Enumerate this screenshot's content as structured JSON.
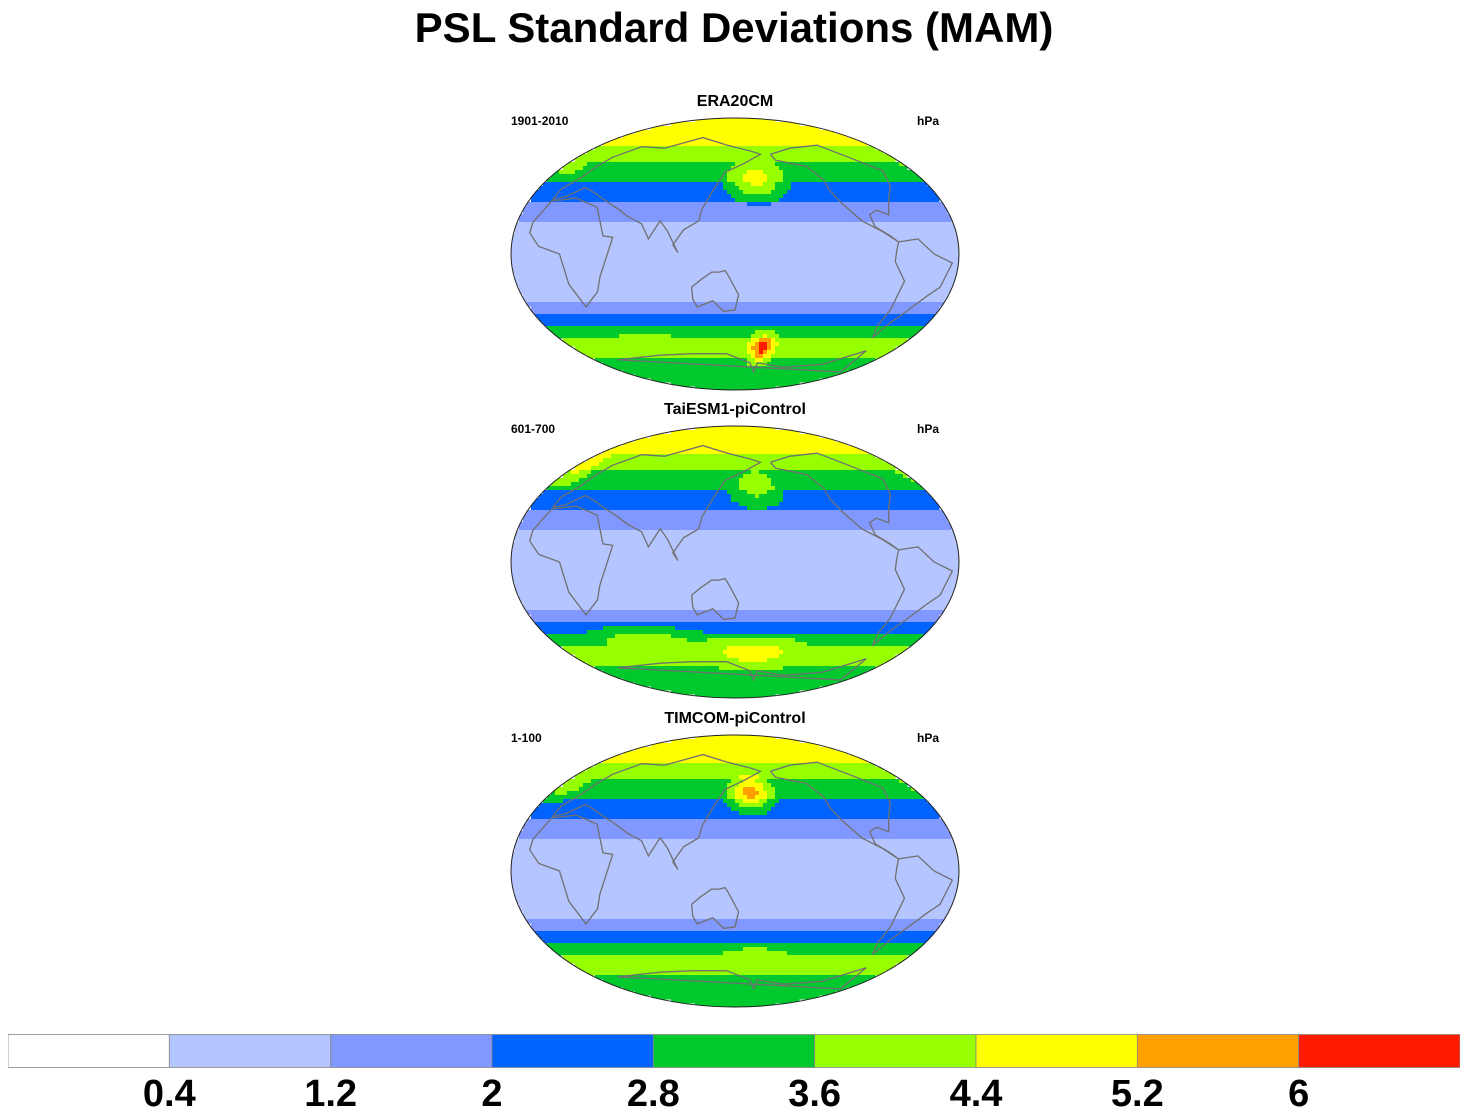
{
  "chart_data": {
    "type": "heatmap",
    "title": "PSL Standard Deviations (MAM)",
    "panels": [
      {
        "name": "ERA20CM",
        "period": "1901-2010",
        "units": "hPa",
        "features": [
          {
            "level": 5,
            "lon": -120,
            "lat": 82,
            "sx": 70,
            "sy": 8
          },
          {
            "level": 5,
            "lon": 170,
            "lat": 50,
            "sx": 18,
            "sy": 10
          },
          {
            "level": 4,
            "lon": -20,
            "lat": 62,
            "sx": 14,
            "sy": 10
          },
          {
            "level": 8,
            "lon": 180,
            "lat": -62,
            "sx": 10,
            "sy": 6
          },
          {
            "level": 4,
            "lon": 60,
            "lat": -60,
            "sx": 40,
            "sy": 8
          }
        ]
      },
      {
        "name": "TaiESM1-piControl",
        "period": "601-700",
        "units": "hPa",
        "features": [
          {
            "level": 5,
            "lon": -120,
            "lat": 82,
            "sx": 60,
            "sy": 8
          },
          {
            "level": 4,
            "lon": 170,
            "lat": 50,
            "sx": 18,
            "sy": 10
          },
          {
            "level": 5,
            "lon": -20,
            "lat": 65,
            "sx": 12,
            "sy": 10
          },
          {
            "level": 5,
            "lon": 170,
            "lat": -60,
            "sx": 40,
            "sy": 7
          },
          {
            "level": 4,
            "lon": 60,
            "lat": -55,
            "sx": 40,
            "sy": 8
          }
        ]
      },
      {
        "name": "TIMCOM-piControl",
        "period": "1-100",
        "units": "hPa",
        "features": [
          {
            "level": 5,
            "lon": -120,
            "lat": 82,
            "sx": 60,
            "sy": 8
          },
          {
            "level": 6,
            "lon": 165,
            "lat": 52,
            "sx": 14,
            "sy": 8
          },
          {
            "level": 4,
            "lon": -20,
            "lat": 60,
            "sx": 14,
            "sy": 10
          },
          {
            "level": 4,
            "lon": 170,
            "lat": -58,
            "sx": 40,
            "sy": 7
          },
          {
            "level": 3,
            "lon": 60,
            "lat": -55,
            "sx": 40,
            "sy": 8
          }
        ]
      }
    ],
    "levels": [
      0.4,
      1.2,
      2,
      2.8,
      3.6,
      4.4,
      5.2,
      6
    ],
    "colorbar_labels": [
      "0.4",
      "1.2",
      "2",
      "2.8",
      "3.6",
      "4.4",
      "5.2",
      "6"
    ],
    "colors": [
      "#ffffff",
      "#b4c5ff",
      "#8098ff",
      "#0062ff",
      "#00c92e",
      "#96ff00",
      "#ffff00",
      "#ff9f00",
      "#ff1a00"
    ]
  }
}
